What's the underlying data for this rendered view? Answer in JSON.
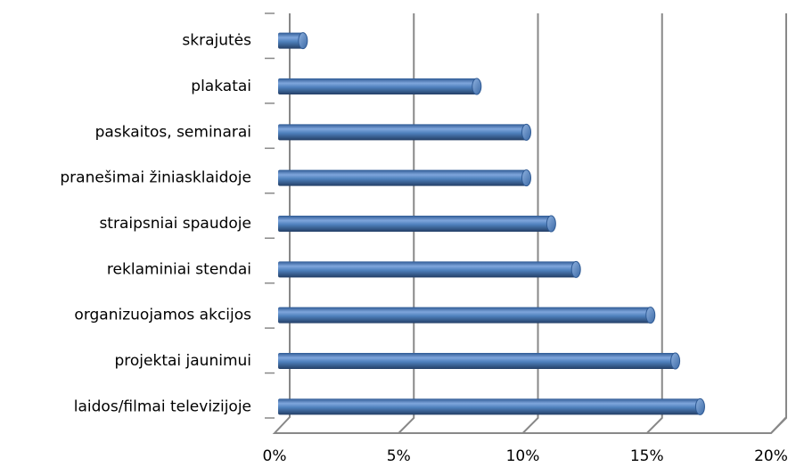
{
  "chart_data": {
    "type": "bar",
    "orientation": "horizontal",
    "categories": [
      "skrajutės",
      "plakatai",
      "paskaitos, seminarai",
      "pranešimai žiniasklaidoje",
      "straipsniai spaudoje",
      "reklaminiai stendai",
      "organizuojamos akcijos",
      "projektai jaunimui",
      "laidos/filmai televizijoje"
    ],
    "values": [
      1,
      8,
      10,
      10,
      11,
      12,
      15,
      16,
      17
    ],
    "color": "#4f81bd",
    "xlim": [
      0,
      20
    ],
    "xticks": [
      {
        "value": 0,
        "label": "0%"
      },
      {
        "value": 5,
        "label": "5%"
      },
      {
        "value": 10,
        "label": "10%"
      },
      {
        "value": 15,
        "label": "15%"
      },
      {
        "value": 20,
        "label": "20%"
      }
    ],
    "grid": true
  }
}
